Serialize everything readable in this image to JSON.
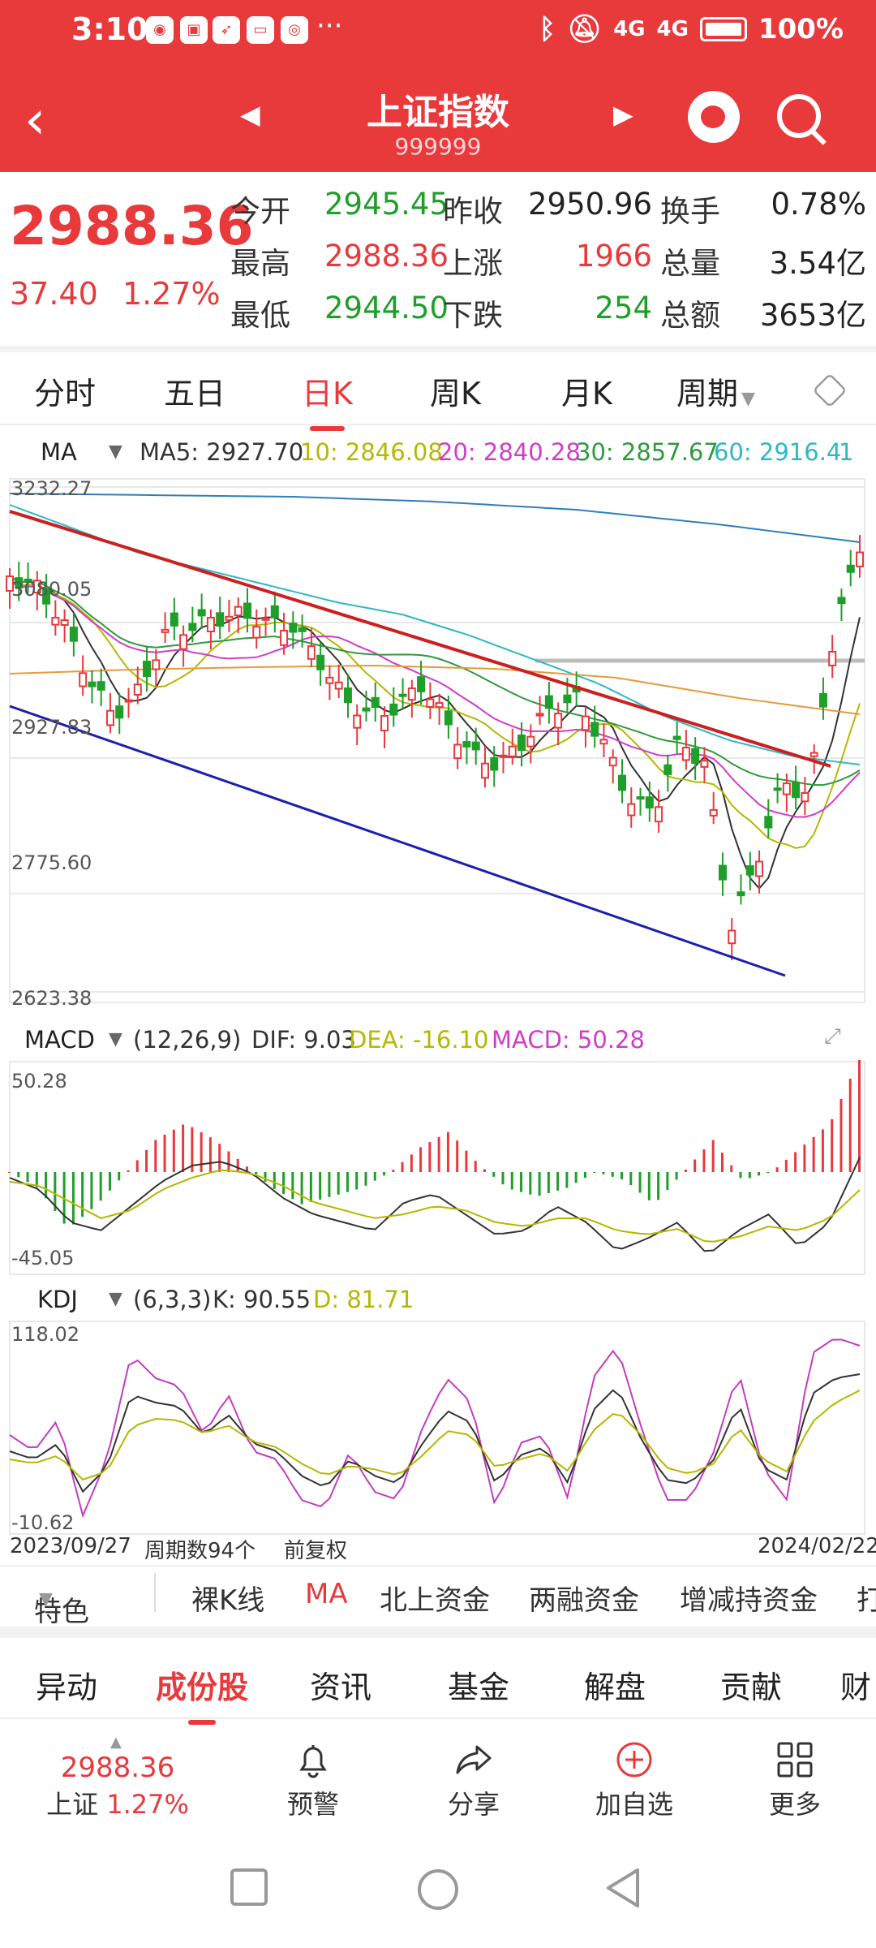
{
  "status_bar": {
    "time": "3:10",
    "battery": "100%",
    "signal1": "4G",
    "signal2": "4G",
    "more": "···"
  },
  "header": {
    "title": "上证指数",
    "code": "999999"
  },
  "quote": {
    "last": "2988.36",
    "change": "37.40",
    "change_pct": "1.27%",
    "rows": [
      {
        "l1": "今开",
        "v1": "2945.45",
        "l2": "昨收",
        "v2": "2950.96",
        "l3": "换手",
        "v3": "0.78%"
      },
      {
        "l1": "最高",
        "v1": "2988.36",
        "l2": "上涨",
        "v2": "1966",
        "l3": "总量",
        "v3": "3.54亿"
      },
      {
        "l1": "最低",
        "v1": "2944.50",
        "l2": "下跌",
        "v2": "254",
        "l3": "总额",
        "v3": "3653亿"
      }
    ]
  },
  "tabs": [
    "分时",
    "五日",
    "日K",
    "周K",
    "月K",
    "周期"
  ],
  "active_tab": "日K",
  "ma_bar": {
    "name": "MA",
    "ma5": "MA5: 2927.70",
    "ma10": "10: 2846.08",
    "ma20": "20: 2840.28",
    "ma30": "30: 2857.67",
    "ma60": "60: 2916.4",
    "more": "1"
  },
  "price_axis": [
    "3232.27",
    "3080.05",
    "2927.83",
    "2775.60",
    "2623.38"
  ],
  "macd_bar": {
    "name": "MACD",
    "params": "(12,26,9)",
    "dif": "DIF: 9.03",
    "dea": "DEA: -16.10",
    "macd": "MACD: 50.28"
  },
  "macd_axis": [
    "50.28",
    "-45.05"
  ],
  "kdj_bar": {
    "name": "KDJ",
    "params": "(6,3,3)",
    "k": "K: 90.55",
    "d": "D: 81.71"
  },
  "kdj_axis": [
    "118.02",
    "-10.62"
  ],
  "footer_info": {
    "start_date": "2023/09/27",
    "period_count": "周期数94个",
    "adjust": "前复权",
    "end_date": "2024/02/22"
  },
  "features": [
    "特色",
    "裸K线",
    "MA",
    "北上资金",
    "两融资金",
    "增减持资金",
    "打"
  ],
  "section_tabs": [
    "异动",
    "成份股",
    "资讯",
    "基金",
    "解盘",
    "贡献",
    "财"
  ],
  "toolbar": {
    "mini_last": "2988.36",
    "mini_sub_label": "上证",
    "mini_sub_pct": "1.27%",
    "alert": "预警",
    "share": "分享",
    "add": "加自选",
    "more": "更多"
  },
  "colors": {
    "up": "#e8393b",
    "down": "#1f9e2a",
    "ma5": "#333333",
    "ma10": "#b5b800",
    "ma20": "#d23cc8",
    "ma30": "#2f9a3c",
    "ma60": "#2fb7c6"
  }
}
